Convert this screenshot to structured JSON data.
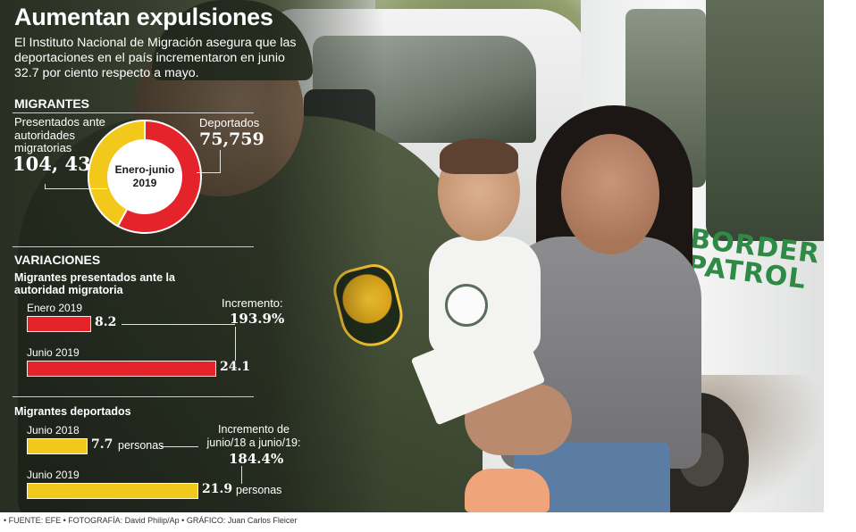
{
  "title": "Aumentan expulsiones",
  "lead": "El Instituto Nacional de Migración asegura que las deportaciones en el país incrementaron en junio 32.7 por ciento respecto a mayo.",
  "photo_text": "BORDER PATROL",
  "footer": "• FUENTE: EFE • FOTOGRAFÍA: David Philip/Ap • GRÁFICO: Juan Carlos Fleicer",
  "colors": {
    "red": "#e4232a",
    "yellow": "#f2c81b",
    "white": "#ffffff"
  },
  "chart_data": [
    {
      "type": "pie",
      "title": "MIGRANTES",
      "center_label": [
        "Enero-junio",
        "2019"
      ],
      "slices": [
        {
          "name": "Presentados ante autoridades migratorias",
          "value": 104439,
          "display": "104, 439",
          "color": "#e4232a"
        },
        {
          "name": "Deportados",
          "value": 75759,
          "display": "75,759",
          "color": "#f2c81b"
        }
      ],
      "donut": true
    },
    {
      "type": "bar",
      "section": "VARIACIONES",
      "title": "Migrantes presentados ante la autoridad migratoria",
      "categories": [
        "Enero 2019",
        "Junio 2019"
      ],
      "values": [
        8.2,
        24.1
      ],
      "value_labels": [
        "8.2",
        "24.1"
      ],
      "color": "#e4232a",
      "annotation": {
        "label": "Incremento:",
        "value": "193.9%"
      }
    },
    {
      "type": "bar",
      "title": "Migrantes deportados",
      "categories": [
        "Junio 2018",
        "Junio 2019"
      ],
      "values": [
        7.7,
        21.9
      ],
      "value_labels": [
        "7.7",
        "21.9"
      ],
      "unit": "personas",
      "color": "#f2c81b",
      "annotation": {
        "label": "Incremento de junio/18 a junio/19:",
        "value": "184.4%"
      }
    }
  ]
}
